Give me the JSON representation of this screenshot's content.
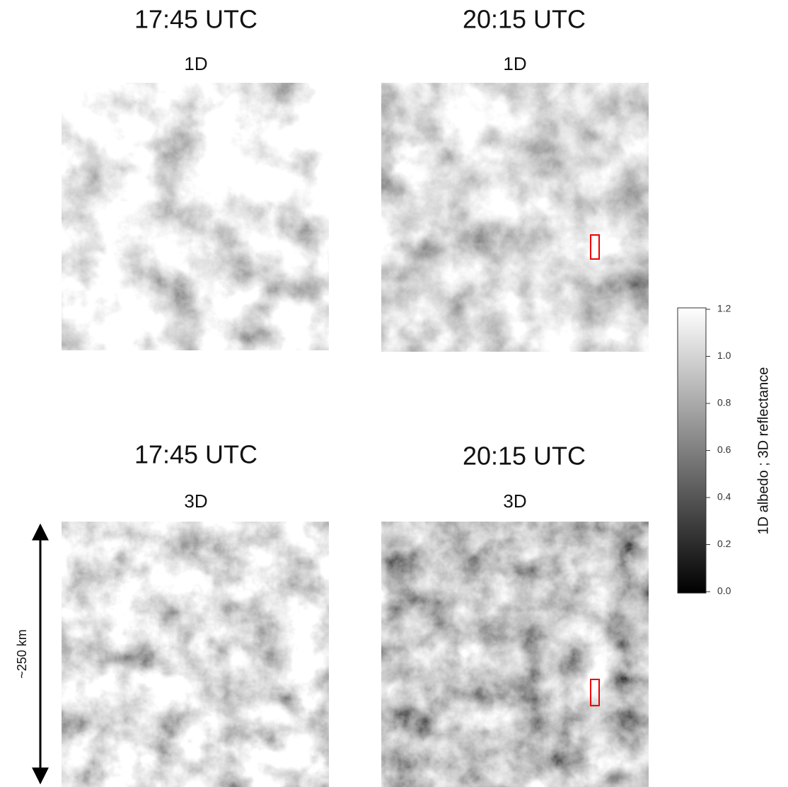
{
  "panels": [
    {
      "time": "17:45 UTC",
      "mode": "1D"
    },
    {
      "time": "20:15 UTC",
      "mode": "1D"
    },
    {
      "time": "17:45 UTC",
      "mode": "3D"
    },
    {
      "time": "20:15 UTC",
      "mode": "3D"
    }
  ],
  "colorbar": {
    "label": "1D albedo ; 3D reflectance",
    "lim": [
      0,
      1.2
    ],
    "ticks": [
      {
        "value": 0,
        "label": "0.0"
      },
      {
        "value": 0.2,
        "label": "0.2"
      },
      {
        "value": 0.4,
        "label": "0.4"
      },
      {
        "value": 0.6,
        "label": "0.6"
      },
      {
        "value": 0.8,
        "label": "0.8"
      },
      {
        "value": 1,
        "label": "1.0"
      },
      {
        "value": 1.2,
        "label": "1.2"
      }
    ]
  },
  "scale_bar": {
    "label": "~250 km"
  }
}
